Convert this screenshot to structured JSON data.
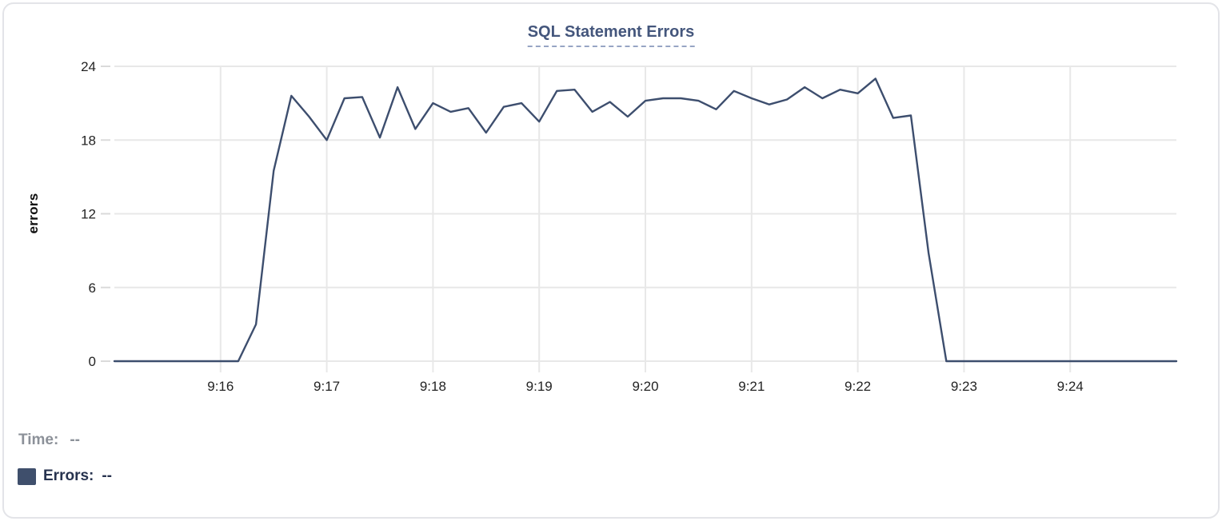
{
  "card": {
    "title": "SQL Statement Errors"
  },
  "legend": {
    "time_label": "Time:",
    "time_value": "--",
    "errors_label": "Errors:",
    "errors_value": "--"
  },
  "colors": {
    "title": "#44567c",
    "title_underline": "#97a5c4",
    "line": "#3d4e6e",
    "grid": "#e8e8e8",
    "tick": "#dadada",
    "axis_text": "#232323",
    "legend_muted": "#8c9199",
    "legend_navy": "#27334f",
    "legend_swatch": "#3f4f6c",
    "card_border": "#e3e4e8"
  },
  "chart_data": {
    "type": "line",
    "title": "SQL Statement Errors",
    "xlabel": "",
    "ylabel": "errors",
    "x_ticks": [
      "9:16",
      "9:17",
      "9:18",
      "9:19",
      "9:20",
      "9:21",
      "9:22",
      "9:23",
      "9:24"
    ],
    "y_ticks": [
      0,
      6,
      12,
      18,
      24
    ],
    "ylim": [
      0,
      24
    ],
    "x_domain": [
      "9:15:00",
      "9:25:00"
    ],
    "grid": true,
    "legend_position": "bottom-left",
    "series": [
      {
        "name": "Errors",
        "color": "#3d4e6e",
        "points": [
          [
            "9:15:00",
            0
          ],
          [
            "9:15:10",
            0
          ],
          [
            "9:15:20",
            0
          ],
          [
            "9:15:30",
            0
          ],
          [
            "9:15:40",
            0
          ],
          [
            "9:15:50",
            0
          ],
          [
            "9:16:00",
            0
          ],
          [
            "9:16:10",
            0
          ],
          [
            "9:16:20",
            3
          ],
          [
            "9:16:30",
            15.5
          ],
          [
            "9:16:40",
            21.6
          ],
          [
            "9:16:50",
            19.9
          ],
          [
            "9:17:00",
            18
          ],
          [
            "9:17:10",
            21.4
          ],
          [
            "9:17:20",
            21.5
          ],
          [
            "9:17:30",
            18.2
          ],
          [
            "9:17:40",
            22.3
          ],
          [
            "9:17:50",
            18.9
          ],
          [
            "9:18:00",
            21
          ],
          [
            "9:18:10",
            20.3
          ],
          [
            "9:18:20",
            20.6
          ],
          [
            "9:18:30",
            18.6
          ],
          [
            "9:18:40",
            20.7
          ],
          [
            "9:18:50",
            21
          ],
          [
            "9:19:00",
            19.5
          ],
          [
            "9:19:10",
            22
          ],
          [
            "9:19:20",
            22.1
          ],
          [
            "9:19:30",
            20.3
          ],
          [
            "9:19:40",
            21.1
          ],
          [
            "9:19:50",
            19.9
          ],
          [
            "9:20:00",
            21.2
          ],
          [
            "9:20:10",
            21.4
          ],
          [
            "9:20:20",
            21.4
          ],
          [
            "9:20:30",
            21.2
          ],
          [
            "9:20:40",
            20.5
          ],
          [
            "9:20:50",
            22
          ],
          [
            "9:21:00",
            21.4
          ],
          [
            "9:21:10",
            20.9
          ],
          [
            "9:21:20",
            21.3
          ],
          [
            "9:21:30",
            22.3
          ],
          [
            "9:21:40",
            21.4
          ],
          [
            "9:21:50",
            22.1
          ],
          [
            "9:22:00",
            21.8
          ],
          [
            "9:22:10",
            23
          ],
          [
            "9:22:20",
            19.8
          ],
          [
            "9:22:30",
            20
          ],
          [
            "9:22:40",
            8.8
          ],
          [
            "9:22:50",
            0
          ],
          [
            "9:23:00",
            0
          ],
          [
            "9:23:10",
            0
          ],
          [
            "9:23:20",
            0
          ],
          [
            "9:23:30",
            0
          ],
          [
            "9:23:40",
            0
          ],
          [
            "9:23:50",
            0
          ],
          [
            "9:24:00",
            0
          ],
          [
            "9:24:10",
            0
          ],
          [
            "9:24:20",
            0
          ],
          [
            "9:24:30",
            0
          ],
          [
            "9:24:40",
            0
          ],
          [
            "9:24:50",
            0
          ],
          [
            "9:25:00",
            0
          ]
        ]
      }
    ]
  }
}
